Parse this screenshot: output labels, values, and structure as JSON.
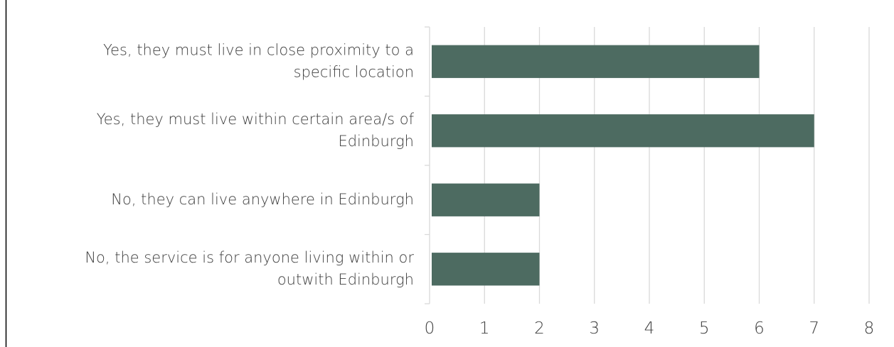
{
  "chart_data": {
    "type": "bar",
    "orientation": "horizontal",
    "categories": [
      [
        "Yes, they must live in close proximity to a",
        "specific location"
      ],
      [
        "Yes, they must live within certain area/s of",
        "Edinburgh"
      ],
      [
        "No, they can live anywhere in Edinburgh"
      ],
      [
        "No, the service is for anyone living within or",
        "outwith Edinburgh"
      ]
    ],
    "values": [
      6,
      7,
      2,
      2
    ],
    "xticks": [
      "0",
      "1",
      "2",
      "3",
      "4",
      "5",
      "6",
      "7",
      "8"
    ],
    "xlim": [
      0,
      8
    ],
    "grid": true,
    "legend": "none",
    "colors": {
      "bar": "#4d6b61",
      "grid": "#d9d9d9",
      "border": "#000000",
      "text": "#404040"
    }
  }
}
